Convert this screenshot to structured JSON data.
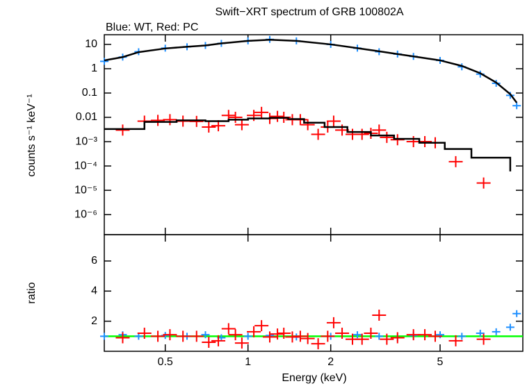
{
  "chart_data": [
    {
      "type": "scatter",
      "title": "Swift−XRT spectrum of GRB 100802A",
      "subtitle": "Blue: WT, Red: PC",
      "ylabel": "counts s⁻¹ keV⁻¹",
      "xlim": [
        0.3,
        10
      ],
      "xlog": true,
      "ylim": [
        1.5e-07,
        25
      ],
      "ylog": true,
      "yticks": [
        10,
        1,
        0.1,
        0.01,
        {
          "value": 0.001,
          "label": "10⁻³"
        },
        {
          "value": 0.0001,
          "label": "10⁻⁴"
        },
        {
          "value": 1e-05,
          "label": "10⁻⁵"
        },
        {
          "value": 1e-06,
          "label": "10⁻⁶"
        }
      ],
      "series": [
        {
          "name": "WT",
          "color": "#1e8fff",
          "x": [
            0.3,
            0.35,
            0.4,
            0.5,
            0.6,
            0.7,
            0.8,
            1.0,
            1.2,
            1.5,
            2.0,
            2.5,
            3.0,
            3.5,
            4.0,
            5.0,
            6.0,
            7.0,
            8.0,
            9.0,
            9.5
          ],
          "values": [
            2,
            3,
            5,
            7,
            8,
            9,
            11,
            14,
            16,
            14,
            10,
            7,
            5,
            4,
            3.2,
            2.2,
            1.2,
            0.6,
            0.25,
            0.08,
            0.03
          ]
        },
        {
          "name": "WT model",
          "color": "#000000",
          "line": true,
          "x": [
            0.3,
            0.35,
            0.4,
            0.5,
            0.6,
            0.7,
            0.8,
            1.0,
            1.2,
            1.5,
            2.0,
            2.5,
            3.0,
            3.5,
            4.0,
            5.0,
            6.0,
            7.0,
            8.0,
            9.0,
            9.5
          ],
          "values": [
            2.2,
            3,
            4.8,
            6.8,
            8,
            9,
            11,
            14,
            15.5,
            14,
            10,
            7,
            5.2,
            4,
            3.2,
            2.2,
            1.3,
            0.65,
            0.27,
            0.09,
            0.04
          ]
        },
        {
          "name": "PC",
          "color": "#ff0000",
          "x": [
            0.35,
            0.42,
            0.47,
            0.52,
            0.58,
            0.65,
            0.72,
            0.78,
            0.85,
            0.9,
            0.95,
            1.05,
            1.12,
            1.2,
            1.28,
            1.35,
            1.45,
            1.55,
            1.65,
            1.8,
            1.95,
            2.05,
            2.2,
            2.4,
            2.6,
            2.8,
            3.0,
            3.2,
            3.5,
            4.0,
            4.4,
            4.8,
            5.7,
            7.2
          ],
          "values": [
            0.003,
            0.007,
            0.0075,
            0.008,
            0.007,
            0.0068,
            0.004,
            0.0045,
            0.012,
            0.01,
            0.005,
            0.012,
            0.016,
            0.009,
            0.011,
            0.01,
            0.008,
            0.008,
            0.005,
            0.002,
            0.004,
            0.007,
            0.003,
            0.002,
            0.002,
            0.0022,
            0.003,
            0.0015,
            0.0012,
            0.001,
            0.001,
            0.0009,
            0.00015,
            2e-05
          ]
        },
        {
          "name": "PC model",
          "color": "#000000",
          "line": true,
          "step": true,
          "x": [
            0.3,
            0.42,
            0.55,
            0.7,
            0.85,
            1.0,
            1.2,
            1.4,
            1.6,
            1.9,
            2.3,
            2.8,
            3.4,
            4.2,
            5.2,
            6.5,
            9.0
          ],
          "values": [
            0.0033,
            0.0065,
            0.0075,
            0.007,
            0.008,
            0.009,
            0.0095,
            0.0085,
            0.006,
            0.004,
            0.0025,
            0.0018,
            0.0013,
            0.0009,
            0.0005,
            0.00022,
            6e-05
          ]
        }
      ]
    },
    {
      "type": "scatter",
      "xlabel": "Energy (keV)",
      "ylabel": "ratio",
      "xlim": [
        0.3,
        10
      ],
      "xlog": true,
      "xticks": [
        0.5,
        1,
        2,
        5
      ],
      "ylim": [
        0,
        7.75
      ],
      "yticks": [
        2,
        4,
        6
      ],
      "reference_line": {
        "value": 1,
        "color": "#00ff00"
      },
      "series": [
        {
          "name": "WT",
          "color": "#1e8fff",
          "x": [
            0.3,
            0.35,
            0.4,
            0.5,
            0.6,
            0.7,
            0.8,
            1.0,
            1.2,
            1.5,
            2.0,
            2.5,
            3.0,
            3.5,
            4.0,
            5.0,
            6.0,
            7.0,
            8.0,
            9.0,
            9.5
          ],
          "values": [
            1.0,
            1.1,
            1.0,
            1.05,
            1.0,
            1.1,
            0.9,
            1.0,
            1.05,
            0.95,
            1.0,
            1.1,
            1.0,
            0.9,
            1.05,
            1.1,
            1.0,
            1.2,
            1.3,
            1.6,
            2.5
          ]
        },
        {
          "name": "PC",
          "color": "#ff0000",
          "x": [
            0.35,
            0.42,
            0.47,
            0.52,
            0.58,
            0.65,
            0.72,
            0.78,
            0.85,
            0.9,
            0.95,
            1.05,
            1.12,
            1.2,
            1.28,
            1.35,
            1.45,
            1.55,
            1.65,
            1.8,
            1.95,
            2.05,
            2.2,
            2.4,
            2.6,
            2.8,
            3.0,
            3.2,
            3.5,
            4.0,
            4.4,
            4.8,
            5.7,
            7.2
          ],
          "values": [
            0.9,
            1.2,
            1.0,
            1.1,
            1.0,
            1.0,
            0.6,
            0.7,
            1.5,
            1.1,
            0.55,
            1.3,
            1.7,
            0.95,
            1.15,
            1.2,
            0.95,
            1.0,
            0.85,
            0.5,
            1.0,
            1.9,
            1.2,
            0.8,
            0.8,
            1.2,
            2.4,
            0.8,
            0.9,
            1.1,
            1.1,
            1.0,
            0.7,
            0.8
          ]
        }
      ]
    }
  ]
}
